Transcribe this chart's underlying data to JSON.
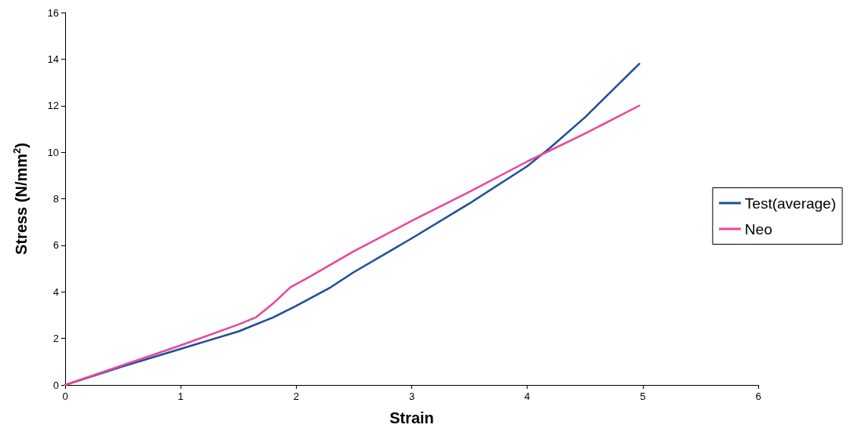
{
  "chart_data": {
    "type": "line",
    "xlabel": "Strain",
    "ylabel": "Stress (N/mm$^{2}$)",
    "xlim": [
      0,
      6
    ],
    "xticks": [
      0,
      1,
      2,
      3,
      4,
      5,
      6
    ],
    "ylim": [
      0,
      16
    ],
    "yticks": [
      0,
      2,
      4,
      6,
      8,
      10,
      12,
      14,
      16
    ],
    "legend": "right",
    "grid": false,
    "marker": "none",
    "line_style": "solid",
    "series": [
      {
        "name": "Test(average)",
        "color": "#1f4e9a",
        "x": [
          0,
          0.5,
          1,
          1.5,
          1.8,
          2,
          2.3,
          2.5,
          3,
          3.5,
          4,
          4.2,
          4.5,
          4.97
        ],
        "values": [
          0,
          0.8,
          1.55,
          2.3,
          2.9,
          3.4,
          4.2,
          4.85,
          6.3,
          7.8,
          9.4,
          10.2,
          11.5,
          13.8
        ]
      },
      {
        "name": "Neo",
        "color": "#e8489a",
        "x": [
          0,
          0.5,
          1,
          1.5,
          1.65,
          1.8,
          1.95,
          2.1,
          2.5,
          3,
          3.5,
          4,
          4.5,
          4.97
        ],
        "values": [
          0,
          0.85,
          1.7,
          2.6,
          2.9,
          3.5,
          4.2,
          4.6,
          5.75,
          7.05,
          8.3,
          9.6,
          10.8,
          12.0
        ]
      }
    ]
  }
}
